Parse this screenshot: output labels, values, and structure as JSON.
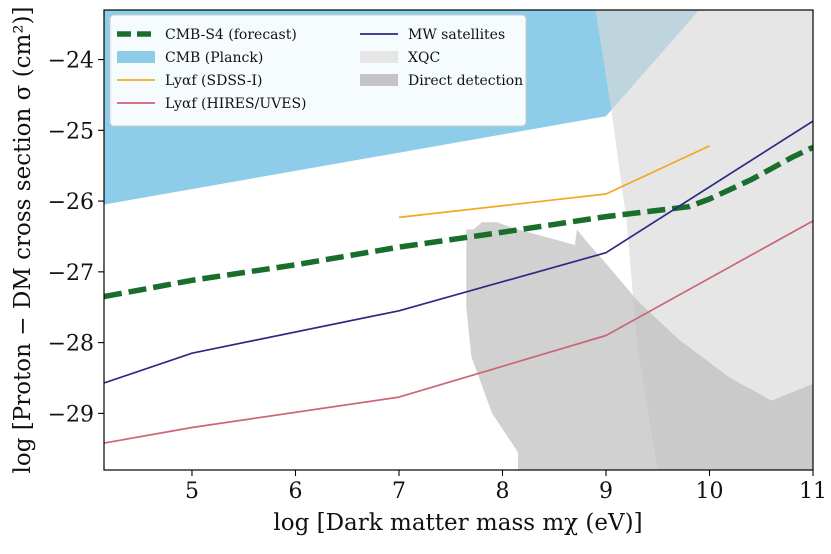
{
  "chart_data": {
    "type": "line",
    "xlabel": "log [Dark matter mass mχ (eV)]",
    "ylabel": "log [Proton − DM cross section σ (cm²)]",
    "xlim": [
      4.15,
      11.0
    ],
    "ylim": [
      -29.8,
      -23.3
    ],
    "x_ticks": [
      5,
      6,
      7,
      8,
      9,
      10,
      11
    ],
    "x_tick_labels": [
      "5",
      "6",
      "7",
      "8",
      "9",
      "10",
      "11"
    ],
    "y_ticks": [
      -24,
      -25,
      -26,
      -27,
      -28,
      -29
    ],
    "y_tick_labels": [
      "−24",
      "−25",
      "−26",
      "−27",
      "−28",
      "−29"
    ],
    "grid": false,
    "legend_position": "top-left",
    "series": [
      {
        "name": "CMB-S4 (forecast)",
        "style": "dashed",
        "color": "#1a6e2c",
        "x": [
          4.15,
          5.0,
          6.0,
          7.0,
          8.0,
          9.0,
          9.8,
          10.0,
          10.4,
          10.8,
          11.0
        ],
        "y": [
          -27.35,
          -27.12,
          -26.9,
          -26.65,
          -26.44,
          -26.22,
          -26.08,
          -25.97,
          -25.7,
          -25.38,
          -25.24
        ]
      },
      {
        "name": "Lyαf (SDSS-I)",
        "style": "solid",
        "color": "#f5a623",
        "x": [
          7.0,
          9.0,
          10.0
        ],
        "y": [
          -26.23,
          -25.9,
          -25.22
        ]
      },
      {
        "name": "Lyαf (HIRES/UVES)",
        "style": "solid",
        "color": "#cc6677",
        "x": [
          4.15,
          5.0,
          7.0,
          9.0,
          11.0
        ],
        "y": [
          -29.42,
          -29.2,
          -28.77,
          -27.9,
          -26.28
        ]
      },
      {
        "name": "MW satellites",
        "style": "solid",
        "color": "#2b2b82",
        "x": [
          4.15,
          5.0,
          7.0,
          9.0,
          11.0
        ],
        "y": [
          -28.57,
          -28.15,
          -27.55,
          -26.73,
          -24.87
        ]
      }
    ],
    "regions": [
      {
        "name": "CMB (Planck)",
        "color": "#8ecde9",
        "x": [
          4.15,
          9.0,
          9.9,
          11.0,
          11.0,
          4.15
        ],
        "y": [
          -26.05,
          -24.8,
          -23.3,
          -23.3,
          -23.3,
          -23.3
        ]
      },
      {
        "name": "XQC",
        "color": "#d9d9d9",
        "x": [
          8.9,
          11.0,
          11.0,
          9.5,
          9.3,
          9.2,
          9.05,
          8.9
        ],
        "y": [
          -23.3,
          -23.3,
          -29.8,
          -29.8,
          -28.0,
          -26.3,
          -24.7,
          -23.3
        ]
      },
      {
        "name": "Direct detection",
        "color": "#bdbdbd",
        "x": [
          7.65,
          7.72,
          7.8,
          7.95,
          8.1,
          8.3,
          8.5,
          8.7,
          8.72,
          8.8,
          9.0,
          9.3,
          9.7,
          10.2,
          10.6,
          11.0,
          11.0,
          8.15,
          8.15,
          7.9,
          7.7,
          7.65
        ],
        "y": [
          -26.4,
          -26.4,
          -26.3,
          -26.3,
          -26.38,
          -26.46,
          -26.54,
          -26.62,
          -26.4,
          -26.55,
          -26.88,
          -27.4,
          -27.95,
          -28.5,
          -28.82,
          -28.58,
          -29.8,
          -29.8,
          -29.55,
          -29.0,
          -28.2,
          -27.5
        ]
      }
    ],
    "legend_entries": [
      {
        "label": "CMB-S4 (forecast)",
        "swatch": "dashed",
        "color": "#1a6e2c"
      },
      {
        "label": "CMB (Planck)",
        "swatch": "patch",
        "color": "#8ecde9"
      },
      {
        "label": "Lyαf (SDSS-I)",
        "swatch": "line",
        "color": "#f5a623"
      },
      {
        "label": "Lyαf (HIRES/UVES)",
        "swatch": "line",
        "color": "#cc6677"
      },
      {
        "label": "MW satellites",
        "swatch": "line",
        "color": "#2b2b82"
      },
      {
        "label": "XQC",
        "swatch": "patch",
        "color": "#e6e6e6"
      },
      {
        "label": "Direct detection",
        "swatch": "patch",
        "color": "#c4c4c4"
      }
    ]
  }
}
